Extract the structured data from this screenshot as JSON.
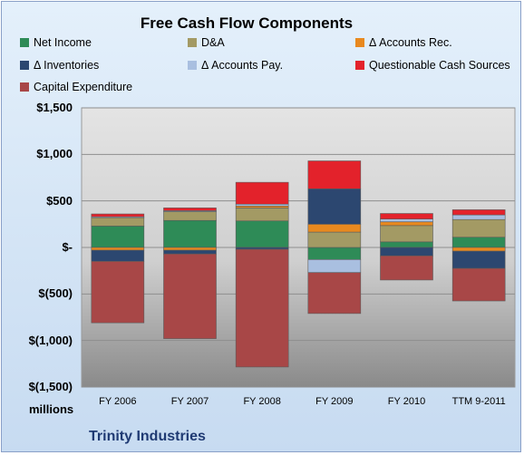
{
  "chart_data": {
    "type": "bar",
    "stacked": true,
    "title": "Free Cash Flow Components",
    "ylabel": "",
    "units_label": "millions",
    "footer": "Trinity Industries",
    "categories": [
      "FY 2006",
      "FY 2007",
      "FY 2008",
      "FY 2009",
      "FY 2010",
      "TTM 9-2011"
    ],
    "ylim": [
      -1500,
      1500
    ],
    "yticks": [
      {
        "value": 1500,
        "label": "$1,500"
      },
      {
        "value": 1000,
        "label": "$1,000"
      },
      {
        "value": 500,
        "label": "$500"
      },
      {
        "value": 0,
        "label": "$-"
      },
      {
        "value": -500,
        "label": "$(500)"
      },
      {
        "value": -1000,
        "label": "$(1,000)"
      },
      {
        "value": -1500,
        "label": "$(1,500)"
      }
    ],
    "grid": true,
    "legend_position": "top",
    "series": [
      {
        "name": "Net Income",
        "color": "#2e8b57",
        "values": [
          230,
          290,
          285,
          -130,
          60,
          110
        ]
      },
      {
        "name": "D&A",
        "color": "#a39a64",
        "values": [
          90,
          95,
          140,
          165,
          175,
          190
        ]
      },
      {
        "name": "Δ Accounts Rec.",
        "color": "#e8891f",
        "values": [
          -30,
          -30,
          20,
          85,
          40,
          -40
        ]
      },
      {
        "name": "Δ Inventories",
        "color": "#2c4770",
        "values": [
          -120,
          -40,
          -20,
          380,
          -90,
          -185
        ]
      },
      {
        "name": "Δ Accounts Pay.",
        "color": "#a9bfe0",
        "values": [
          10,
          10,
          20,
          -140,
          30,
          50
        ]
      },
      {
        "name": "Questionable Cash Sources",
        "color": "#e3222b",
        "values": [
          30,
          30,
          235,
          300,
          60,
          55
        ]
      },
      {
        "name": "Capital Expenditure",
        "color": "#a84747",
        "values": [
          -660,
          -910,
          -1265,
          -440,
          -260,
          -350
        ]
      }
    ]
  }
}
